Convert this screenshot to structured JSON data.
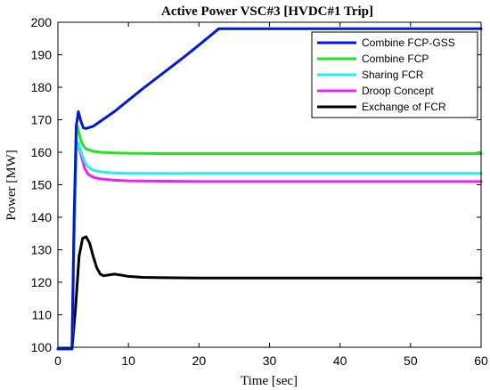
{
  "chart_data": {
    "type": "line",
    "title": "Active Power VSC#3 [HVDC#1 Trip]",
    "xlabel": "Time [sec]",
    "ylabel": "Power [MW]",
    "xlim": [
      0,
      60
    ],
    "ylim": [
      100,
      200
    ],
    "xticks": [
      0,
      10,
      20,
      30,
      40,
      50,
      60
    ],
    "yticks": [
      100,
      110,
      120,
      130,
      140,
      150,
      160,
      170,
      180,
      190,
      200
    ],
    "grid": false,
    "legend_position": "top-right",
    "series": [
      {
        "name": "Combine FCP-GSS",
        "color": "#0018d8",
        "x": [
          0,
          2,
          2.3,
          2.6,
          2.9,
          3.2,
          3.6,
          4.0,
          5,
          6,
          8,
          10,
          12,
          15,
          18,
          20,
          22.8,
          25,
          30,
          40,
          50,
          60
        ],
        "y": [
          99.5,
          99.5,
          140,
          168,
          172.5,
          170,
          167.5,
          167.3,
          168,
          169.5,
          172.5,
          176,
          179.5,
          184.5,
          189.5,
          193,
          198,
          198,
          198,
          198,
          198,
          198
        ]
      },
      {
        "name": "Combine FCP",
        "color": "#22e222",
        "x": [
          0,
          2,
          2.3,
          2.6,
          2.8,
          3.2,
          3.6,
          4,
          5,
          6,
          8,
          10,
          15,
          20,
          30,
          40,
          50,
          60
        ],
        "y": [
          99.5,
          99.5,
          140,
          165,
          168,
          164,
          162,
          161,
          160.3,
          160,
          159.8,
          159.7,
          159.6,
          159.6,
          159.6,
          159.6,
          159.6,
          159.6
        ]
      },
      {
        "name": "Sharing FCR",
        "color": "#29ecec",
        "x": [
          0,
          2,
          2.3,
          2.6,
          2.9,
          3.3,
          3.8,
          4.3,
          5,
          6,
          8,
          10,
          15,
          20,
          30,
          40,
          50,
          60
        ],
        "y": [
          99.5,
          99.5,
          135,
          160,
          163,
          160,
          157,
          155.5,
          154.5,
          154,
          153.6,
          153.5,
          153.5,
          153.5,
          153.5,
          153.5,
          153.5,
          153.5
        ]
      },
      {
        "name": "Droop Concept",
        "color": "#ee22ee",
        "x": [
          0,
          2,
          2.3,
          2.6,
          2.9,
          3.3,
          3.8,
          4.3,
          5,
          6,
          8,
          10,
          15,
          20,
          30,
          40,
          50,
          60
        ],
        "y": [
          99.5,
          99.5,
          135,
          160,
          163,
          159,
          155,
          153.2,
          152.3,
          151.8,
          151.4,
          151.2,
          151.1,
          151,
          151,
          151,
          151,
          151
        ]
      },
      {
        "name": "Exchange of FCR",
        "color": "#000000",
        "x": [
          0,
          2,
          2.5,
          3,
          3.5,
          4,
          4.5,
          5,
          5.5,
          6,
          6.5,
          7,
          8,
          9,
          10,
          12,
          15,
          20,
          30,
          40,
          50,
          60
        ],
        "y": [
          99.5,
          99.5,
          112,
          128,
          133.5,
          134,
          132,
          128,
          124.5,
          122.5,
          122,
          122.2,
          122.5,
          122.2,
          121.8,
          121.5,
          121.4,
          121.3,
          121.3,
          121.3,
          121.3,
          121.3
        ]
      }
    ]
  }
}
